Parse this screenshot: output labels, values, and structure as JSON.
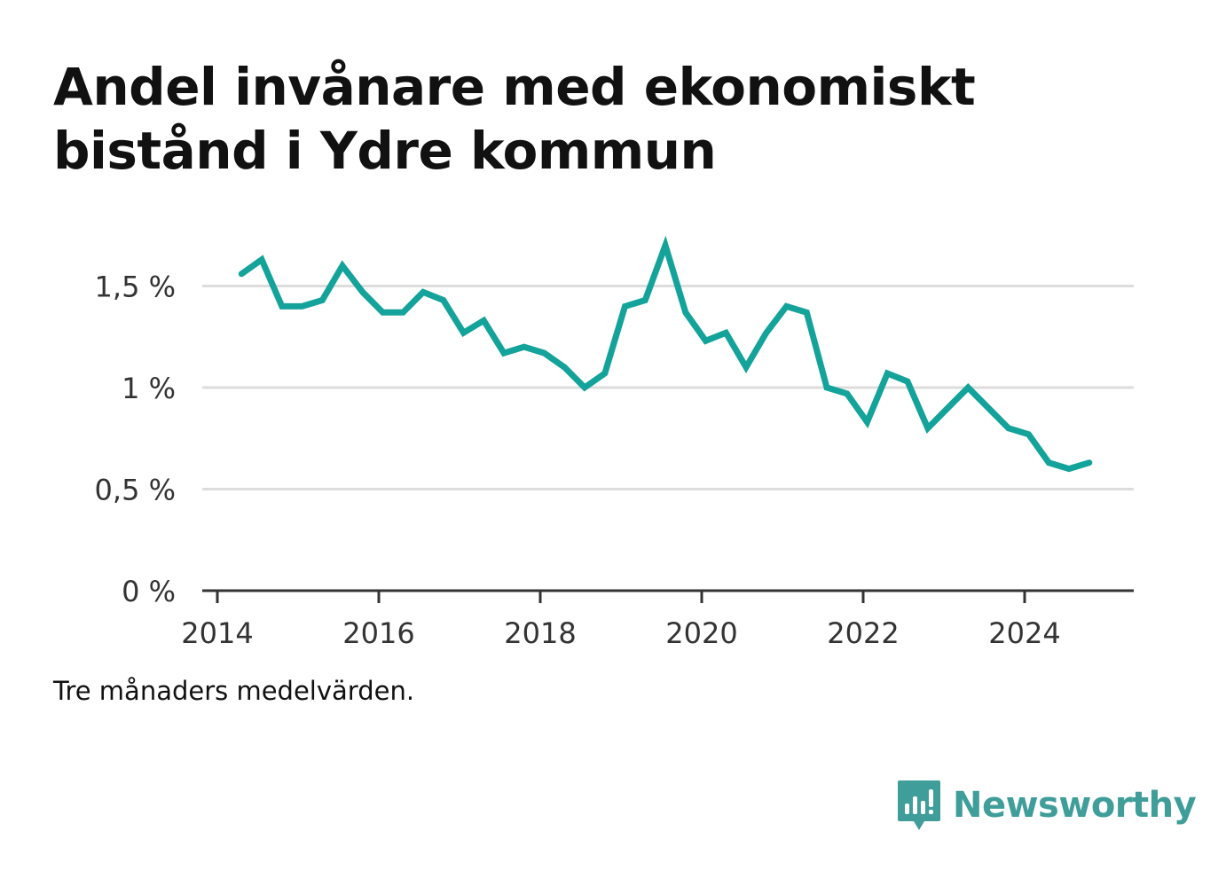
{
  "title": "Andel invånare med ekonomiskt bistånd i Ydre kommun",
  "footnote": "Tre månaders medelvärden.",
  "brand": {
    "name": "Newsworthy",
    "logo_icon": "newsworthy-logo-icon",
    "color": "#3f9e9a"
  },
  "colors": {
    "line": "#14a39a",
    "grid": "#dddddd",
    "axis": "#333333"
  },
  "chart_data": {
    "type": "line",
    "title": "Andel invånare med ekonomiskt bistånd i Ydre kommun",
    "xlabel": "",
    "ylabel": "",
    "xlim": [
      2014,
      2025.4
    ],
    "ylim": [
      0,
      1.6
    ],
    "x_ticks": [
      2014,
      2016,
      2018,
      2020,
      2022,
      2024
    ],
    "x_tick_labels": [
      "2014",
      "2016",
      "2018",
      "2020",
      "2022",
      "2024"
    ],
    "y_ticks": [
      0,
      0.5,
      1,
      1.5
    ],
    "y_tick_labels": [
      "0 %",
      "0,5 %",
      "1 %",
      "1,5 %"
    ],
    "grid": "horizontal",
    "legend": "none",
    "series": [
      {
        "x": [
          2014.3,
          2014.55,
          2014.8,
          2015.05,
          2015.3,
          2015.55,
          2015.8,
          2016.05,
          2016.3,
          2016.55,
          2016.8,
          2017.05,
          2017.3,
          2017.55,
          2017.8,
          2018.05,
          2018.3,
          2018.55,
          2018.8,
          2019.05,
          2019.3,
          2019.55,
          2019.8,
          2020.05,
          2020.3,
          2020.55,
          2020.8,
          2021.05,
          2021.3,
          2021.55,
          2021.8,
          2022.05,
          2022.3,
          2022.55,
          2022.8,
          2023.05,
          2023.3,
          2023.55,
          2023.8,
          2024.05,
          2024.3,
          2024.55,
          2024.8
        ],
        "values": [
          1.56,
          1.63,
          1.4,
          1.4,
          1.43,
          1.6,
          1.47,
          1.37,
          1.37,
          1.47,
          1.43,
          1.27,
          1.33,
          1.17,
          1.2,
          1.17,
          1.1,
          1.0,
          1.07,
          1.4,
          1.43,
          1.7,
          1.37,
          1.23,
          1.27,
          1.1,
          1.27,
          1.4,
          1.37,
          1.0,
          0.97,
          0.83,
          1.07,
          1.03,
          0.8,
          0.9,
          1.0,
          0.9,
          0.8,
          0.77,
          0.63,
          0.6,
          0.63
        ]
      }
    ]
  }
}
